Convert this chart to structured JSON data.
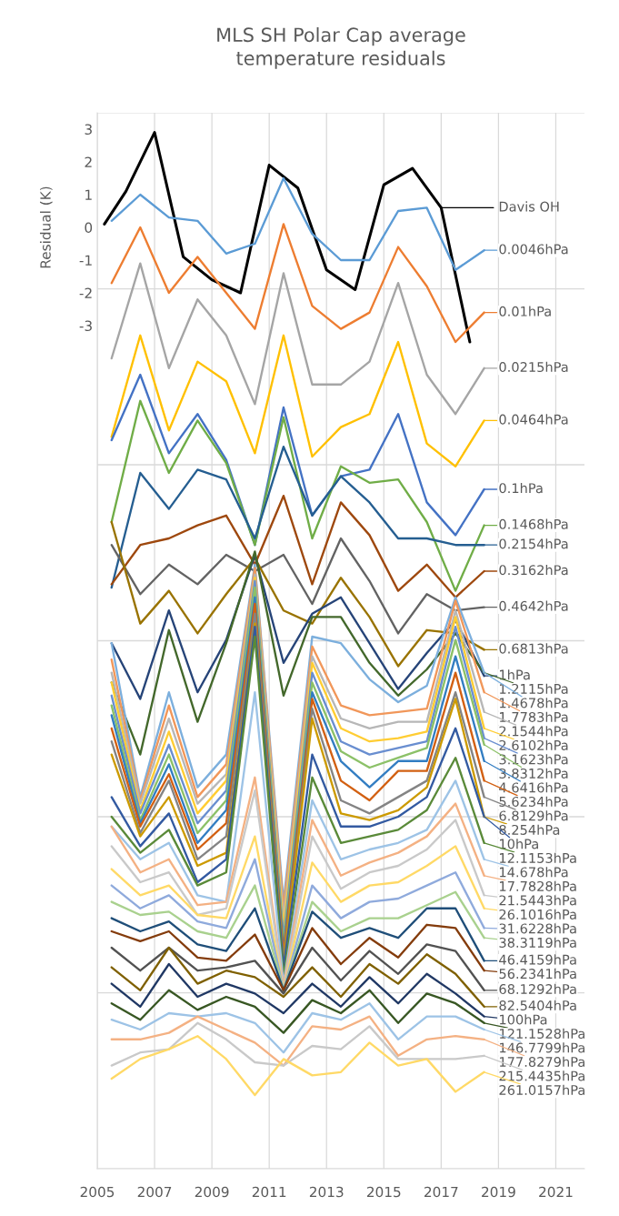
{
  "chart_data": {
    "type": "line",
    "title": "MLS SH Polar Cap average\ntemperature residuals",
    "ylabel": "Residual (K)",
    "x": [
      2005.5,
      2006.5,
      2007.5,
      2008.5,
      2009.5,
      2010.5,
      2011.5,
      2012.5,
      2013.5,
      2014.5,
      2015.5,
      2016.5,
      2017.5,
      2018.5
    ],
    "xlim": [
      2005,
      2022
    ],
    "xticks": [
      2005,
      2007,
      2009,
      2011,
      2013,
      2015,
      2017,
      2019,
      2021
    ],
    "ylim": [
      -28.75,
      3.5
    ],
    "yticks": [
      3,
      2,
      1,
      0,
      -1,
      -2,
      -3,
      {
        "value": 3.5,
        "label": null
      },
      {
        "value": -1.875,
        "label": null
      },
      {
        "value": -7.25,
        "label": null
      },
      {
        "value": -12.625,
        "label": null
      },
      {
        "value": -18.0,
        "label": null
      },
      {
        "value": -23.375,
        "label": null
      },
      {
        "value": -28.75,
        "label": null
      }
    ],
    "grid": true,
    "legend": "right",
    "series": [
      {
        "name": "Davis OH",
        "color": "#000000",
        "x": [
          2005.25,
          2006,
          2007,
          2008,
          2009,
          2010,
          2011,
          2012,
          2013,
          2014,
          2015,
          2016,
          2017,
          2018
        ],
        "values": [
          0.1,
          1.1,
          2.9,
          -0.9,
          -1.6,
          -2.0,
          1.9,
          1.2,
          -1.3,
          -1.9,
          1.3,
          1.8,
          0.6,
          -3.5
        ]
      },
      {
        "name": "0.0046hPa",
        "color": "#5b9bd5",
        "values": [
          0.2,
          1.0,
          0.3,
          0.2,
          -0.8,
          -0.5,
          1.5,
          -0.2,
          -1.0,
          -1.0,
          0.5,
          0.6,
          -1.3,
          -0.7
        ]
      },
      {
        "name": "0.01hPa",
        "color": "#ed7d31",
        "values": [
          -1.7,
          0.0,
          -2.0,
          -0.9,
          -2.0,
          -3.1,
          0.1,
          -2.4,
          -3.1,
          -2.6,
          -0.6,
          -1.8,
          -3.5,
          -2.6
        ]
      },
      {
        "name": "0.0215hPa",
        "color": "#a5a5a5",
        "values": [
          -4.0,
          -1.1,
          -4.3,
          -2.2,
          -3.3,
          -5.4,
          -1.4,
          -4.8,
          -4.8,
          -4.1,
          -1.7,
          -4.5,
          -5.7,
          -4.3
        ]
      },
      {
        "name": "0.0464hPa",
        "color": "#ffc000",
        "values": [
          -6.4,
          -3.3,
          -6.2,
          -4.1,
          -4.7,
          -6.9,
          -3.3,
          -7.0,
          -6.1,
          -5.7,
          -3.5,
          -6.6,
          -7.3,
          -5.9
        ]
      },
      {
        "name": "0.1hPa",
        "color": "#4472c4",
        "values": [
          -6.5,
          -4.5,
          -6.9,
          -5.7,
          -7.1,
          -9.7,
          -5.5,
          -8.8,
          -7.6,
          -7.4,
          -5.7,
          -8.4,
          -9.4,
          -8.0
        ]
      },
      {
        "name": "0.1468hPa",
        "color": "#70ad47",
        "values": [
          -9.0,
          -5.3,
          -7.5,
          -5.9,
          -7.2,
          -9.7,
          -5.8,
          -9.5,
          -7.3,
          -7.8,
          -7.7,
          -9.0,
          -11.1,
          -9.1
        ]
      },
      {
        "name": "0.2154hPa",
        "color": "#255e91",
        "values": [
          -11.0,
          -7.5,
          -8.6,
          -7.4,
          -7.7,
          -9.5,
          -6.7,
          -8.8,
          -7.6,
          -8.4,
          -9.5,
          -9.5,
          -9.7,
          -9.7
        ]
      },
      {
        "name": "0.3162hPa",
        "color": "#9e480e",
        "values": [
          -10.9,
          -9.7,
          -9.5,
          -9.1,
          -8.8,
          -10.3,
          -8.2,
          -10.9,
          -8.4,
          -9.4,
          -11.1,
          -10.3,
          -11.3,
          -10.5
        ]
      },
      {
        "name": "0.4642hPa",
        "color": "#636363",
        "values": [
          -9.7,
          -11.2,
          -10.3,
          -10.9,
          -10.0,
          -10.5,
          -10.0,
          -11.5,
          -9.5,
          -10.8,
          -12.4,
          -11.2,
          -11.7,
          -11.6
        ]
      },
      {
        "name": "0.6813hPa",
        "color": "#997300",
        "values": [
          -9.0,
          -12.1,
          -11.1,
          -12.4,
          -11.2,
          -10.1,
          -11.7,
          -12.1,
          -10.7,
          -11.9,
          -13.4,
          -12.3,
          -12.4,
          -12.9
        ]
      },
      {
        "name": "1hPa",
        "color": "#264478",
        "values": [
          -12.7,
          -14.4,
          -11.7,
          -14.2,
          -12.6,
          -10.0,
          -13.3,
          -11.8,
          -11.3,
          -12.7,
          -14.1,
          -13.0,
          -12.0,
          -13.7
        ]
      },
      {
        "name": "1.2115hPa",
        "color": "#43682b",
        "values": [
          -13.9,
          -16.1,
          -12.3,
          -15.1,
          -12.7,
          -9.9,
          -14.3,
          -11.9,
          -11.9,
          -13.3,
          -14.3,
          -13.5,
          -12.4,
          -13.6
        ]
      },
      {
        "name": "1.4678hPa",
        "color": "#7cafdd",
        "values": [
          -12.7,
          -17.4,
          -14.2,
          -17.1,
          -16.1,
          -10.3,
          -20.6,
          -12.5,
          -12.7,
          -13.8,
          -14.5,
          -14.0,
          -11.3,
          -13.6
        ]
      },
      {
        "name": "1.7783hPa",
        "color": "#f1975a",
        "values": [
          -13.2,
          -17.5,
          -14.6,
          -17.4,
          -16.4,
          -10.4,
          -20.8,
          -12.8,
          -14.6,
          -14.9,
          -14.8,
          -14.7,
          -11.4,
          -14.2
        ]
      },
      {
        "name": "2.1544hPa",
        "color": "#b7b7b7",
        "values": [
          -13.6,
          -17.6,
          -15.0,
          -17.6,
          -16.7,
          -10.6,
          -21.1,
          -13.1,
          -15.0,
          -15.3,
          -15.1,
          -15.1,
          -11.7,
          -14.8
        ]
      },
      {
        "name": "2.6102hPa",
        "color": "#ffcd33",
        "values": [
          -13.9,
          -17.8,
          -15.4,
          -17.9,
          -16.9,
          -10.7,
          -21.4,
          -13.3,
          -15.3,
          -15.7,
          -15.6,
          -15.4,
          -11.9,
          -15.3
        ]
      },
      {
        "name": "3.1623hPa",
        "color": "#698ed0",
        "values": [
          -14.3,
          -17.9,
          -15.8,
          -18.2,
          -17.2,
          -10.8,
          -21.7,
          -13.6,
          -15.7,
          -16.1,
          -15.9,
          -15.7,
          -12.2,
          -15.6
        ]
      },
      {
        "name": "3.8312hPa",
        "color": "#8cc168",
        "values": [
          -14.6,
          -18.1,
          -16.1,
          -18.5,
          -17.5,
          -11.0,
          -21.9,
          -13.9,
          -16.0,
          -16.5,
          -16.2,
          -15.9,
          -12.6,
          -15.8
        ]
      },
      {
        "name": "4.6416hPa",
        "color": "#327dc2",
        "values": [
          -14.9,
          -18.2,
          -16.4,
          -18.8,
          -17.8,
          -11.3,
          -22.1,
          -14.2,
          -16.3,
          -17.1,
          -16.3,
          -16.3,
          -13.1,
          -16.3
        ]
      },
      {
        "name": "5.6234hPa",
        "color": "#d26012",
        "values": [
          -15.3,
          -18.3,
          -16.7,
          -19.0,
          -18.2,
          -11.5,
          -22.2,
          -14.4,
          -16.9,
          -17.5,
          -16.6,
          -16.6,
          -13.6,
          -16.9
        ]
      },
      {
        "name": "6.8129hPa",
        "color": "#848484",
        "values": [
          -15.7,
          -18.5,
          -16.9,
          -19.3,
          -18.6,
          -11.8,
          -22.4,
          -14.7,
          -17.5,
          -17.9,
          -17.4,
          -16.9,
          -14.2,
          -17.4
        ]
      },
      {
        "name": "8.254hPa",
        "color": "#cc9a00",
        "values": [
          -16.1,
          -18.6,
          -17.4,
          -19.5,
          -19.1,
          -12.1,
          -22.5,
          -15.0,
          -17.9,
          -18.1,
          -17.8,
          -17.1,
          -14.4,
          -18.0
        ]
      },
      {
        "name": "10hPa",
        "color": "#335aa1",
        "values": [
          -17.4,
          -18.9,
          -17.9,
          -20.0,
          -19.3,
          -12.2,
          -22.6,
          -16.1,
          -18.3,
          -18.3,
          -18.0,
          -17.4,
          -15.3,
          -18.0
        ]
      },
      {
        "name": "12.1153hPa",
        "color": "#5a8a39",
        "values": [
          -18.0,
          -19.1,
          -18.4,
          -20.1,
          -19.7,
          -12.5,
          -22.9,
          -16.8,
          -18.8,
          -18.6,
          -18.4,
          -17.8,
          -16.2,
          -18.8
        ]
      },
      {
        "name": "14.678hPa",
        "color": "#9dc3e6",
        "values": [
          -18.3,
          -19.3,
          -18.8,
          -20.4,
          -20.6,
          -14.2,
          -23.1,
          -17.5,
          -19.3,
          -19.0,
          -18.8,
          -18.4,
          -16.9,
          -19.3
        ]
      },
      {
        "name": "17.7828hPa",
        "color": "#f4b183",
        "values": [
          -18.3,
          -19.7,
          -19.3,
          -20.7,
          -20.6,
          -16.8,
          -23.2,
          -18.1,
          -19.8,
          -19.4,
          -19.1,
          -18.6,
          -17.6,
          -19.8
        ]
      },
      {
        "name": "21.5443hPa",
        "color": "#c9c9c9",
        "values": [
          -18.9,
          -20.0,
          -19.7,
          -21.0,
          -20.8,
          -17.2,
          -23.3,
          -18.6,
          -20.2,
          -19.7,
          -19.5,
          -19.0,
          -18.1,
          -20.4
        ]
      },
      {
        "name": "26.1016hPa",
        "color": "#ffd966",
        "values": [
          -19.6,
          -20.4,
          -20.1,
          -21.0,
          -21.1,
          -18.6,
          -23.3,
          -19.4,
          -20.6,
          -20.1,
          -20.0,
          -19.5,
          -18.9,
          -20.8
        ]
      },
      {
        "name": "31.6228hPa",
        "color": "#8faadc",
        "values": [
          -20.1,
          -20.8,
          -20.4,
          -21.2,
          -21.4,
          -19.3,
          -23.3,
          -20.1,
          -21.1,
          -20.6,
          -20.5,
          -20.1,
          -19.7,
          -21.4
        ]
      },
      {
        "name": "38.3119hPa",
        "color": "#a9d18e",
        "values": [
          -20.6,
          -21.0,
          -20.9,
          -21.5,
          -21.7,
          -20.1,
          -23.3,
          -20.6,
          -21.5,
          -21.1,
          -21.1,
          -20.7,
          -20.3,
          -21.7
        ]
      },
      {
        "name": "46.4159hPa",
        "color": "#1f4e79",
        "values": [
          -21.1,
          -21.5,
          -21.2,
          -21.9,
          -22.1,
          -20.8,
          -23.3,
          -20.9,
          -21.7,
          -21.4,
          -21.7,
          -20.8,
          -20.8,
          -22.4
        ]
      },
      {
        "name": "56.2341hPa",
        "color": "#843c0c",
        "values": [
          -21.5,
          -21.8,
          -21.5,
          -22.3,
          -22.4,
          -21.6,
          -23.3,
          -21.4,
          -22.5,
          -21.7,
          -22.3,
          -21.3,
          -21.4,
          -22.7
        ]
      },
      {
        "name": "68.1292hPa",
        "color": "#525252",
        "values": [
          -22.0,
          -22.7,
          -22.0,
          -22.7,
          -22.6,
          -22.4,
          -23.4,
          -22.0,
          -23.0,
          -22.1,
          -22.8,
          -21.9,
          -22.1,
          -23.3
        ]
      },
      {
        "name": "82.5404hPa",
        "color": "#7f6000",
        "values": [
          -22.6,
          -23.3,
          -22.0,
          -23.1,
          -22.7,
          -22.9,
          -23.5,
          -22.6,
          -23.5,
          -22.5,
          -23.1,
          -22.2,
          -22.8,
          -23.8
        ]
      },
      {
        "name": "100hPa",
        "color": "#203864",
        "values": [
          -23.1,
          -23.8,
          -22.5,
          -23.5,
          -23.1,
          -23.4,
          -24.0,
          -23.1,
          -23.8,
          -22.9,
          -23.7,
          -22.8,
          -23.4,
          -24.1
        ]
      },
      {
        "name": "121.1528hPa",
        "color": "#385723",
        "values": [
          -23.7,
          -24.2,
          -23.3,
          -23.9,
          -23.5,
          -23.8,
          -24.6,
          -23.6,
          -24.0,
          -23.3,
          -24.3,
          -23.4,
          -23.7,
          -24.3
        ]
      },
      {
        "name": "146.7799hPa",
        "color": "#9dc3e6",
        "values": [
          -24.2,
          -24.5,
          -24.0,
          -24.1,
          -24.0,
          -24.3,
          -25.2,
          -24.0,
          -24.2,
          -23.7,
          -24.8,
          -24.1,
          -24.1,
          -24.5
        ]
      },
      {
        "name": "177.8279hPa",
        "color": "#f4b183",
        "values": [
          -24.8,
          -24.8,
          -24.6,
          -24.1,
          -24.5,
          -24.9,
          -25.6,
          -24.4,
          -24.5,
          -24.1,
          -25.3,
          -24.8,
          -24.7,
          -24.8
        ]
      },
      {
        "name": "215.4435hPa",
        "color": "#c9c9c9",
        "values": [
          -25.6,
          -25.2,
          -25.1,
          -24.3,
          -24.8,
          -25.5,
          -25.6,
          -25.0,
          -25.1,
          -24.4,
          -25.4,
          -25.4,
          -25.4,
          -25.3
        ]
      },
      {
        "name": "261.0157hPa",
        "color": "#ffd966",
        "values": [
          -26.0,
          -25.4,
          -25.1,
          -24.7,
          -25.4,
          -26.5,
          -25.4,
          -25.9,
          -25.8,
          -24.9,
          -25.6,
          -25.4,
          -26.4,
          -25.8
        ]
      }
    ]
  }
}
